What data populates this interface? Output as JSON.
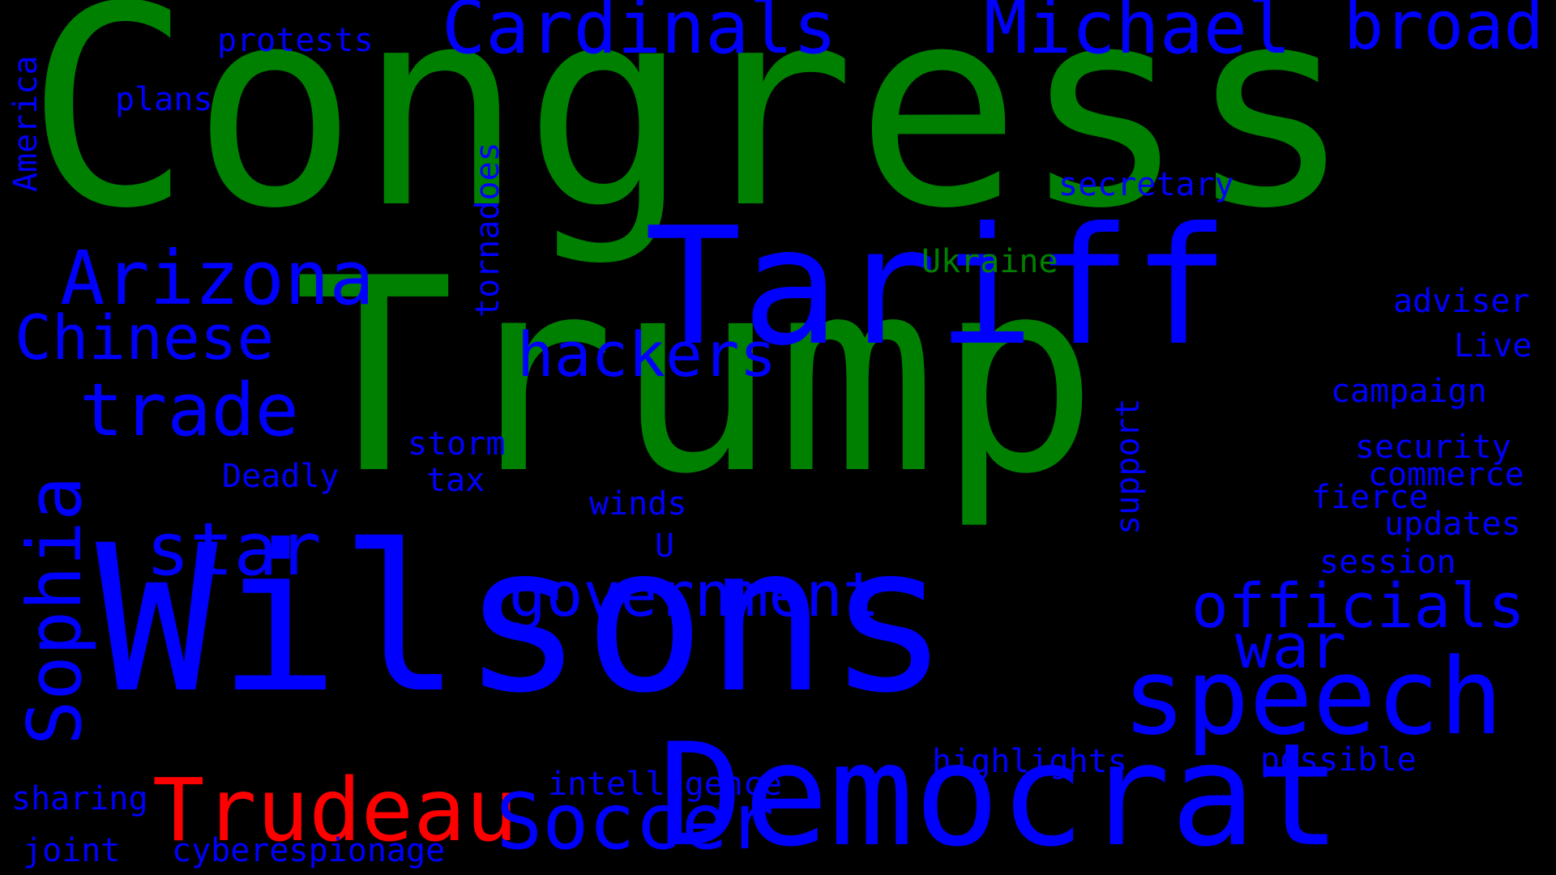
{
  "colors": {
    "background": "#000000",
    "blue": "#0000ff",
    "green": "#008000",
    "red": "#ff0000"
  },
  "words": [
    {
      "key": "congress",
      "text": "Congress",
      "color": "green"
    },
    {
      "key": "trump",
      "text": "Trump",
      "color": "green"
    },
    {
      "key": "wilsons",
      "text": "Wilsons",
      "color": "blue"
    },
    {
      "key": "tariff",
      "text": "Tariff",
      "color": "blue"
    },
    {
      "key": "democrat",
      "text": "Democrat",
      "color": "blue"
    },
    {
      "key": "speech",
      "text": "speech",
      "color": "blue"
    },
    {
      "key": "trudeau",
      "text": "Trudeau",
      "color": "red"
    },
    {
      "key": "arizona",
      "text": "Arizona",
      "color": "blue"
    },
    {
      "key": "soccer",
      "text": "Soccer",
      "color": "blue"
    },
    {
      "key": "cardinals",
      "text": "Cardinals",
      "color": "blue"
    },
    {
      "key": "michael",
      "text": "Michael",
      "color": "blue"
    },
    {
      "key": "broad",
      "text": "broad",
      "color": "blue"
    },
    {
      "key": "trade",
      "text": "trade",
      "color": "blue"
    },
    {
      "key": "star",
      "text": "star",
      "color": "blue"
    },
    {
      "key": "chinese",
      "text": "Chinese",
      "color": "blue"
    },
    {
      "key": "hackers",
      "text": "hackers",
      "color": "blue"
    },
    {
      "key": "government",
      "text": "government",
      "color": "blue"
    },
    {
      "key": "officials",
      "text": "officials",
      "color": "blue"
    },
    {
      "key": "war",
      "text": "war",
      "color": "blue"
    },
    {
      "key": "sophia",
      "text": "Sophia",
      "color": "blue"
    },
    {
      "key": "protests",
      "text": "protests",
      "color": "blue"
    },
    {
      "key": "plans",
      "text": "plans",
      "color": "blue"
    },
    {
      "key": "america",
      "text": "America",
      "color": "blue"
    },
    {
      "key": "tornadoes",
      "text": "tornadoes",
      "color": "blue"
    },
    {
      "key": "secretary",
      "text": "secretary",
      "color": "blue"
    },
    {
      "key": "ukraine",
      "text": "Ukraine",
      "color": "green"
    },
    {
      "key": "adviser",
      "text": "adviser",
      "color": "blue"
    },
    {
      "key": "live",
      "text": "Live",
      "color": "blue"
    },
    {
      "key": "campaign",
      "text": "campaign",
      "color": "blue"
    },
    {
      "key": "security",
      "text": "security",
      "color": "blue"
    },
    {
      "key": "commerce",
      "text": "commerce",
      "color": "blue"
    },
    {
      "key": "fierce",
      "text": "fierce",
      "color": "blue"
    },
    {
      "key": "updates",
      "text": "updates",
      "color": "blue"
    },
    {
      "key": "session",
      "text": "session",
      "color": "blue"
    },
    {
      "key": "storm",
      "text": "storm",
      "color": "blue"
    },
    {
      "key": "tax",
      "text": "tax",
      "color": "blue"
    },
    {
      "key": "deadly",
      "text": "Deadly",
      "color": "blue"
    },
    {
      "key": "winds",
      "text": "winds",
      "color": "blue"
    },
    {
      "key": "u",
      "text": "U",
      "color": "blue"
    },
    {
      "key": "support",
      "text": "support",
      "color": "blue"
    },
    {
      "key": "highlights",
      "text": "highlights",
      "color": "blue"
    },
    {
      "key": "possible",
      "text": "possible",
      "color": "blue"
    },
    {
      "key": "intelligence",
      "text": "intelligence",
      "color": "blue"
    },
    {
      "key": "sharing",
      "text": "sharing",
      "color": "blue"
    },
    {
      "key": "joint",
      "text": "joint",
      "color": "blue"
    },
    {
      "key": "cyberespionage",
      "text": "cyberespionage",
      "color": "blue"
    }
  ]
}
